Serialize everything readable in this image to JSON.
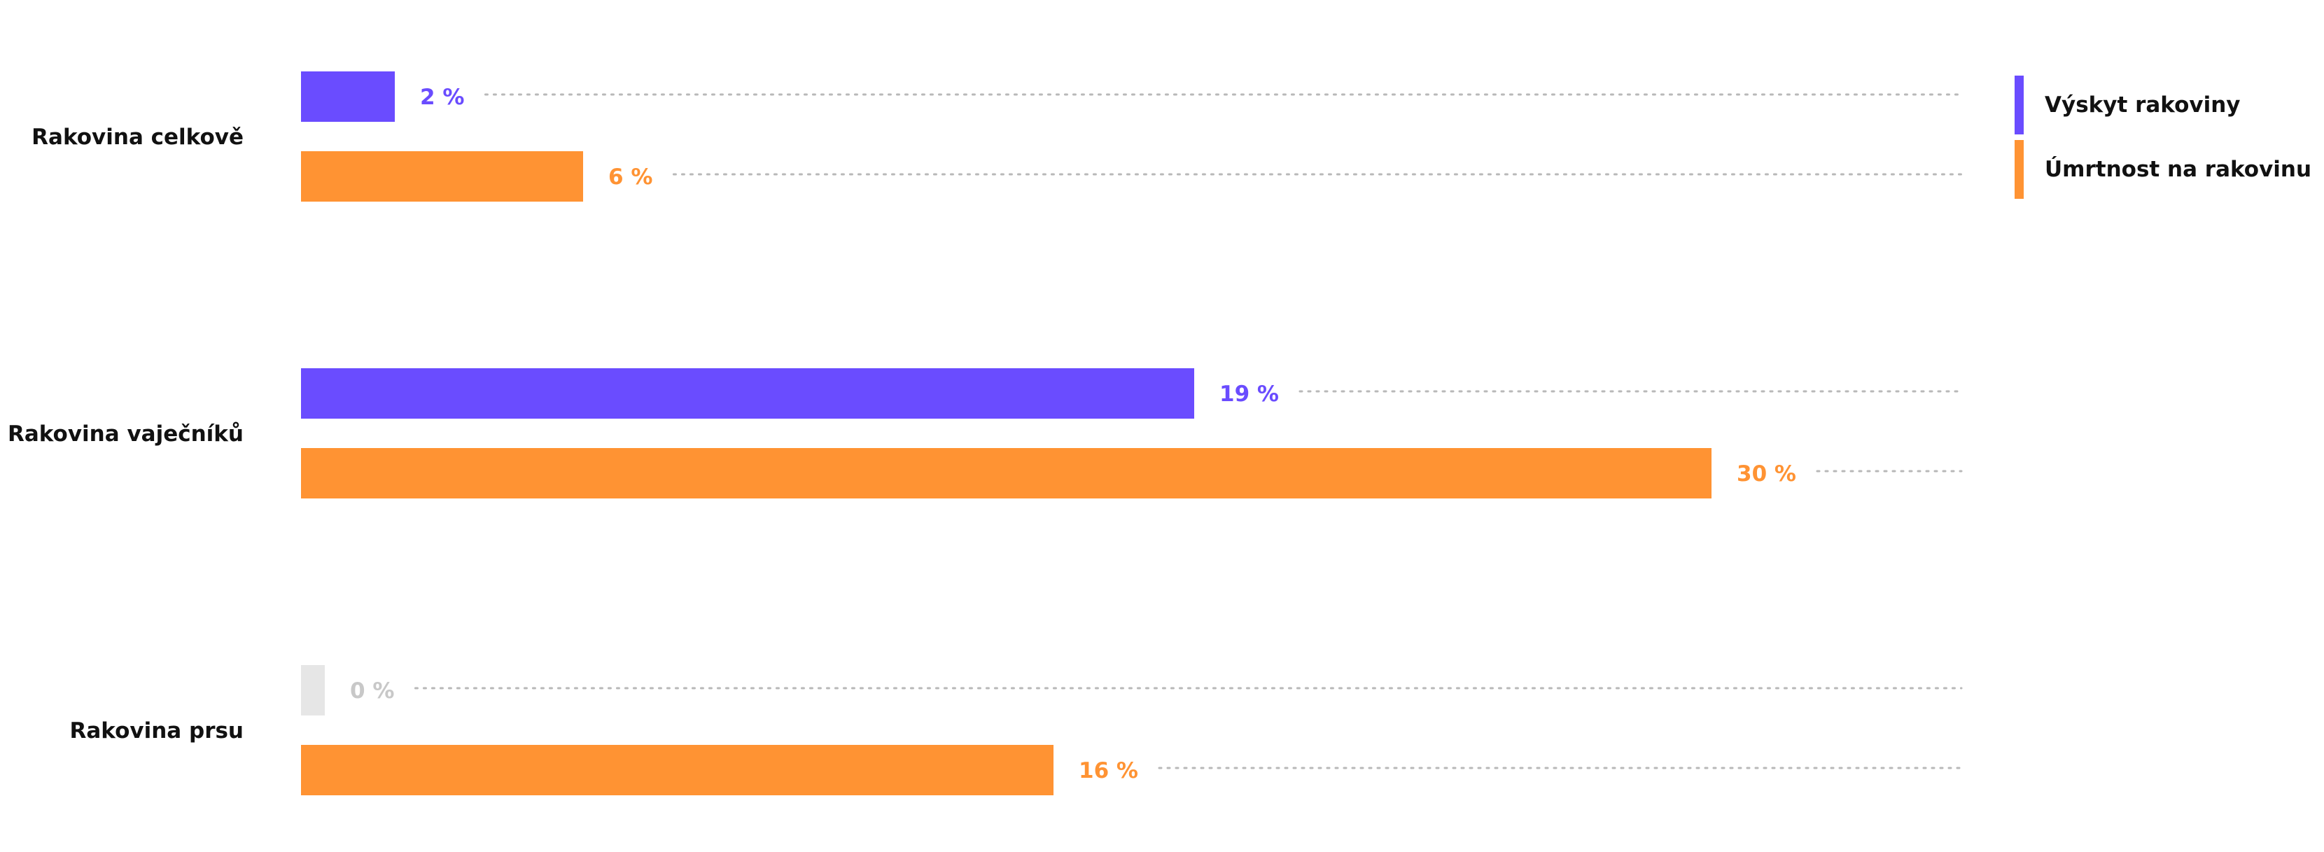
{
  "chart_data": {
    "type": "bar",
    "orientation": "horizontal",
    "categories": [
      "Rakovina celkově",
      "Rakovina vaječníků",
      "Rakovina prsu"
    ],
    "series": [
      {
        "name": "Výskyt rakoviny",
        "values": [
          2,
          19,
          0
        ],
        "color": "#6a4cff"
      },
      {
        "name": "Úmrtnost na rakovinu",
        "values": [
          6,
          30,
          16
        ],
        "color": "#ff9333"
      }
    ],
    "value_suffix": " %",
    "zero_color": "#e6e6e6",
    "zero_label_color": "#c8c8c8",
    "xlim": [
      0,
      30
    ],
    "legend_position": "top-right",
    "grid": false
  }
}
